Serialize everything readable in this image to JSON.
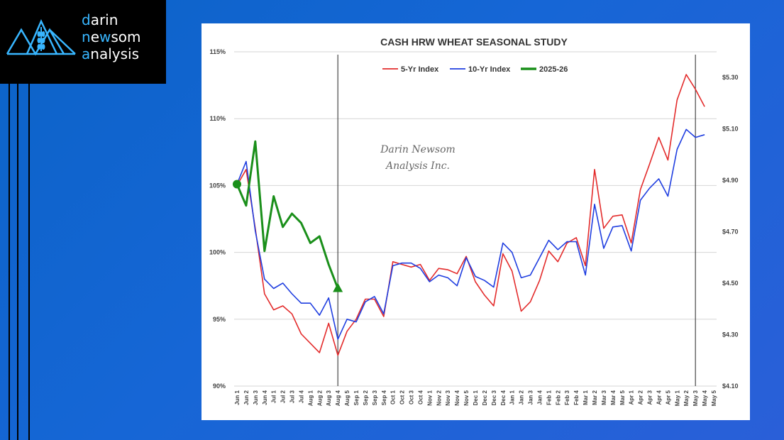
{
  "logo": {
    "line1_accent": "d",
    "line1_rest": "arin",
    "line2_accent1": "n",
    "line2_mid": "e",
    "line2_accent2": "w",
    "line2_rest": "som",
    "line3_accent": "a",
    "line3_rest": "nalysis",
    "colors": {
      "accent": "#38b6ff",
      "text": "#ffffff",
      "background": "#000000"
    }
  },
  "chart_data": {
    "type": "line",
    "title": "CASH HRW WHEAT SEASONAL STUDY",
    "watermark": [
      "Darin Newsom",
      "Analysis Inc."
    ],
    "categories": [
      "Jun 1",
      "Jun 2",
      "Jun 3",
      "Jun 4",
      "Jul 1",
      "Jul 2",
      "Jul 3",
      "Jul 4",
      "Aug 1",
      "Aug 2",
      "Aug 3",
      "Aug 4",
      "Aug 5",
      "Sep 1",
      "Sep 2",
      "Sep 3",
      "Sep 4",
      "Oct 1",
      "Oct 2",
      "Oct 3",
      "Oct 4",
      "Nov 1",
      "Nov 2",
      "Nov 3",
      "Nov 4",
      "Nov 5",
      "Dec 1",
      "Dec 2",
      "Dec 3",
      "Dec 4",
      "Jan 1",
      "Jan 2",
      "Jan 3",
      "Jan 4",
      "Feb 1",
      "Feb 2",
      "Feb 3",
      "Feb 4",
      "Mar 1",
      "Mar 2",
      "Mar 3",
      "Mar 4",
      "Mar 5",
      "Apr 1",
      "Apr 2",
      "Apr 3",
      "Apr 4",
      "Apr 5",
      "May 1",
      "May 2",
      "May 3",
      "May 4",
      "May 5"
    ],
    "y_left": {
      "ticks": [
        "90%",
        "95%",
        "100%",
        "105%",
        "110%",
        "115%"
      ],
      "range": [
        90,
        115
      ]
    },
    "y_right": {
      "ticks": [
        "$4.10",
        "$4.30",
        "$4.50",
        "$4.70",
        "$4.90",
        "$5.10",
        "$5.30"
      ],
      "range": [
        4.1,
        5.4
      ]
    },
    "legend_position": "top-center",
    "grid": true,
    "vertical_markers": [
      "Aug 4",
      "May 3"
    ],
    "series": [
      {
        "name": "5-Yr Index",
        "color": "#e32b2b",
        "axis": "left",
        "values": [
          105.0,
          106.2,
          101.8,
          96.9,
          95.7,
          96.0,
          95.4,
          93.9,
          93.2,
          92.5,
          94.7,
          92.3,
          94.1,
          95.0,
          96.5,
          96.5,
          95.2,
          99.3,
          99.1,
          98.9,
          99.1,
          97.9,
          98.8,
          98.7,
          98.4,
          99.7,
          97.8,
          96.8,
          96.0,
          99.9,
          98.6,
          95.6,
          96.3,
          97.9,
          100.1,
          99.3,
          100.7,
          101.1,
          99.0,
          106.2,
          101.8,
          102.7,
          102.8,
          100.7,
          104.7,
          106.6,
          108.6,
          106.9,
          111.4,
          113.3,
          112.2,
          110.9,
          null
        ]
      },
      {
        "name": "10-Yr Index",
        "color": "#1f3ee0",
        "axis": "left",
        "values": [
          105.1,
          106.8,
          101.6,
          98.0,
          97.3,
          97.7,
          96.9,
          96.2,
          96.2,
          95.3,
          96.6,
          93.5,
          95.0,
          94.8,
          96.3,
          96.7,
          95.4,
          99.0,
          99.2,
          99.2,
          98.8,
          97.8,
          98.3,
          98.1,
          97.5,
          99.6,
          98.2,
          97.9,
          97.4,
          100.7,
          100.0,
          98.1,
          98.3,
          99.6,
          100.9,
          100.2,
          100.8,
          100.8,
          98.3,
          103.6,
          100.3,
          101.9,
          102.0,
          100.1,
          103.9,
          104.8,
          105.5,
          104.2,
          107.7,
          109.2,
          108.6,
          108.8,
          null
        ]
      },
      {
        "name": "2025-26",
        "color": "#1a8f1a",
        "axis": "left",
        "values": [
          105.1,
          103.5,
          108.3,
          100.1,
          104.2,
          101.9,
          102.9,
          102.2,
          100.7,
          101.2,
          99.1,
          97.3,
          null,
          null,
          null,
          null,
          null,
          null,
          null,
          null,
          null,
          null,
          null,
          null,
          null,
          null,
          null,
          null,
          null,
          null,
          null,
          null,
          null,
          null,
          null,
          null,
          null,
          null,
          null,
          null,
          null,
          null,
          null,
          null,
          null,
          null,
          null,
          null,
          null,
          null,
          null,
          null,
          null
        ]
      }
    ]
  }
}
